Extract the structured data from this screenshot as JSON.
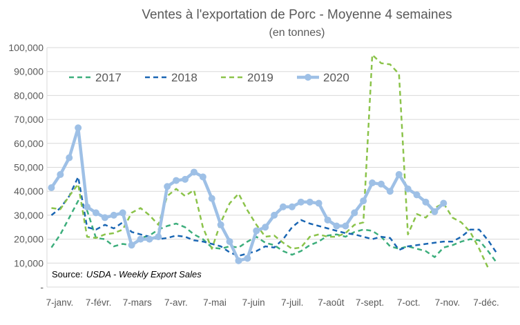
{
  "chart_data": {
    "type": "line",
    "title": "Ventes à l'exportation de Porc - Moyenne 4 semaines",
    "subtitle": "(en tonnes)",
    "source_prefix": "Source:",
    "source_text": "USDA - Weekly Export Sales",
    "x_tick_labels": [
      "7-janv.",
      "7-févr.",
      "7-mars",
      "7-avr.",
      "7-mai",
      "7-juin",
      "7-juil.",
      "7-août",
      "7-sept.",
      "7-oct.",
      "7-nov.",
      "7-déc."
    ],
    "x_week_range": [
      1,
      53
    ],
    "y_tick_labels": [
      "-",
      "10,000",
      "20,000",
      "30,000",
      "40,000",
      "50,000",
      "60,000",
      "70,000",
      "80,000",
      "90,000",
      "100,000"
    ],
    "ylim": [
      0,
      100000
    ],
    "grid": true,
    "legend_position": "top",
    "series": [
      {
        "name": "2017",
        "color": "#3dae7c",
        "style": "dashed",
        "values": [
          16500,
          22000,
          29000,
          36000,
          32000,
          20500,
          20000,
          17000,
          18000,
          17500,
          20500,
          21500,
          24000,
          25500,
          26500,
          25000,
          22000,
          20000,
          16500,
          16000,
          17000,
          16500,
          19000,
          21000,
          18500,
          17500,
          15000,
          13500,
          15000,
          17500,
          19000,
          21500,
          22000,
          21000,
          23000,
          24000,
          23500,
          21000,
          17000,
          16000,
          17000,
          16000,
          15000,
          12500,
          16500,
          17500,
          19000,
          20000,
          19500,
          15000,
          10000
        ]
      },
      {
        "name": "2018",
        "color": "#1a66b3",
        "style": "dashed",
        "values": [
          30000,
          33000,
          38000,
          46000,
          25000,
          24000,
          26000,
          24500,
          27000,
          23000,
          22000,
          21000,
          20000,
          20500,
          21500,
          21000,
          19500,
          19000,
          18000,
          17000,
          14500,
          13000,
          14000,
          15000,
          17000,
          16500,
          20000,
          25000,
          28000,
          26500,
          25500,
          24500,
          23500,
          22500,
          22000,
          21000,
          20000,
          21000,
          20500,
          15500,
          17000,
          17500,
          18000,
          18500,
          19000,
          19000,
          21000,
          24000,
          24000,
          19500,
          14000
        ]
      },
      {
        "name": "2019",
        "color": "#8bc34a",
        "style": "dashed",
        "values": [
          33000,
          32500,
          38000,
          43000,
          21000,
          20500,
          22000,
          22500,
          24000,
          31000,
          33000,
          30000,
          26000,
          38000,
          41000,
          38000,
          40500,
          25000,
          16000,
          27000,
          35000,
          39000,
          32000,
          26000,
          21000,
          21500,
          18500,
          16000,
          16500,
          21000,
          22000,
          21000,
          21000,
          22500,
          26000,
          27000,
          97000,
          93500,
          93000,
          89000,
          22000,
          30500,
          29000,
          33000,
          35000,
          29000,
          27000,
          23000,
          16000,
          8000
        ]
      },
      {
        "name": "2020",
        "color": "#9ec0e6",
        "style": "solid",
        "values": [
          41500,
          47000,
          54000,
          66500,
          33500,
          31000,
          29000,
          30000,
          31000,
          17500,
          20000,
          20000,
          21000,
          42000,
          44500,
          45000,
          48000,
          46000,
          37000,
          26000,
          19000,
          11000,
          12000,
          23500,
          25000,
          30000,
          33500,
          33500,
          35500,
          35500,
          35000,
          28000,
          25500,
          25500,
          31000,
          36000,
          43500,
          43000,
          40000,
          47000,
          41000,
          38500,
          35500,
          31500,
          35000
        ]
      }
    ]
  }
}
